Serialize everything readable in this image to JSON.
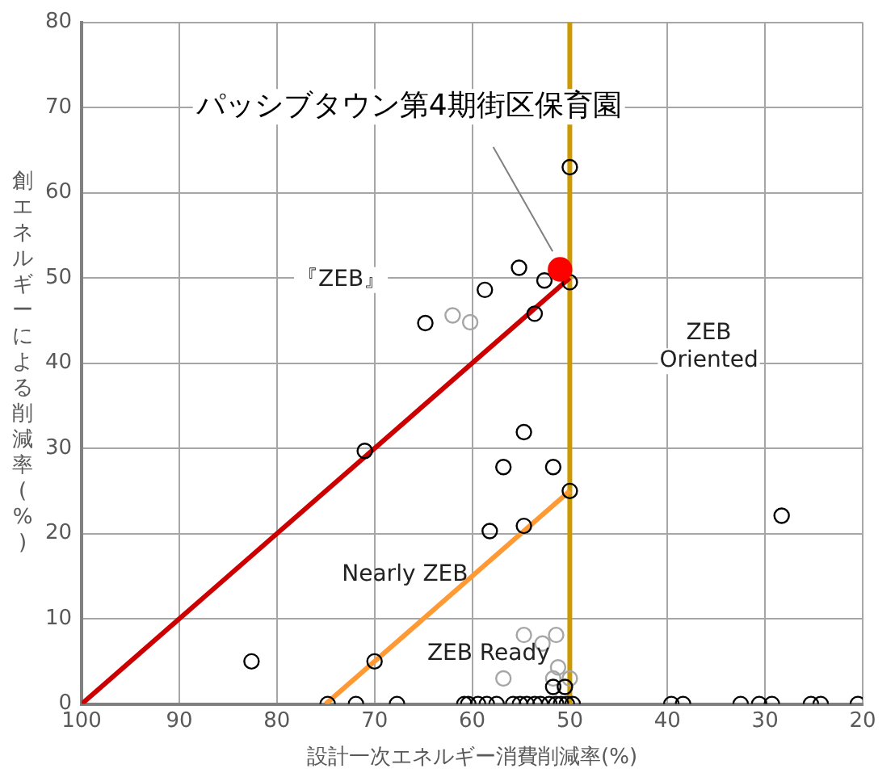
{
  "chart_data": {
    "type": "scatter",
    "xlabel": "設計一次エネルギー消費削減率(%)",
    "ylabel": "創エネルギーによる削減率(%)",
    "xlim": [
      100,
      20
    ],
    "xticks": [
      100,
      90,
      80,
      70,
      60,
      50,
      40,
      30,
      20
    ],
    "ylim": [
      0,
      80
    ],
    "yticks": [
      0,
      10,
      20,
      30,
      40,
      50,
      60,
      70,
      80
    ],
    "grid": true,
    "marker": "circle",
    "series": [
      {
        "type": "line",
        "color": "#cc0000",
        "x": [
          100,
          50
        ],
        "values": [
          0,
          50
        ],
        "marker": "none"
      },
      {
        "type": "line",
        "color": "#ff9933",
        "x": [
          75,
          50
        ],
        "values": [
          0,
          25
        ],
        "marker": "none"
      },
      {
        "type": "scatter",
        "color": "#000000",
        "x": [
          50,
          50,
          55.2,
          52.6,
          58.7,
          53.6,
          64.8,
          71,
          54.7,
          56.8,
          51.7,
          50,
          58.2,
          54.7,
          70,
          82.6,
          51.7,
          50.5,
          28.3,
          74.8,
          71.9,
          67.7,
          60.8,
          60.4,
          59.4,
          58.5,
          57.5,
          55.8,
          55.1,
          54.4,
          53.6,
          53,
          52.1,
          51.4,
          50.9,
          50.3,
          49.7,
          39.6,
          38.4,
          32.5,
          30.6,
          29.3,
          25.3,
          24.3,
          20.5
        ],
        "values": [
          63,
          49.5,
          51.2,
          49.7,
          48.6,
          45.8,
          44.7,
          29.7,
          31.9,
          27.8,
          27.8,
          25,
          20.3,
          20.9,
          5,
          5,
          2,
          2,
          22.1,
          0,
          0,
          0,
          0,
          0,
          0,
          0,
          0,
          0,
          0,
          0,
          0,
          0,
          0,
          0,
          0,
          0,
          0,
          0,
          0,
          0,
          0,
          0,
          0,
          0,
          0
        ]
      },
      {
        "type": "scatter",
        "color": "#a6a6a6",
        "x": [
          62,
          60.2,
          54.7,
          51.4,
          52.8,
          56.8,
          51.2,
          51.7,
          50
        ],
        "values": [
          45.6,
          44.8,
          8.1,
          8.1,
          7.1,
          3,
          4.3,
          3,
          3
        ]
      },
      {
        "type": "scatter",
        "color": "#ff0000",
        "x": [
          51
        ],
        "values": [
          51
        ]
      }
    ],
    "ref_lines": [
      {
        "axis": "x",
        "value": 50,
        "color": "#cc9900"
      }
    ],
    "annotations": [
      "パッシブタウン第4期街区保育園",
      "『ZEB』",
      "ZEB\nOriented",
      "Nearly ZEB",
      "ZEB Ready"
    ]
  }
}
